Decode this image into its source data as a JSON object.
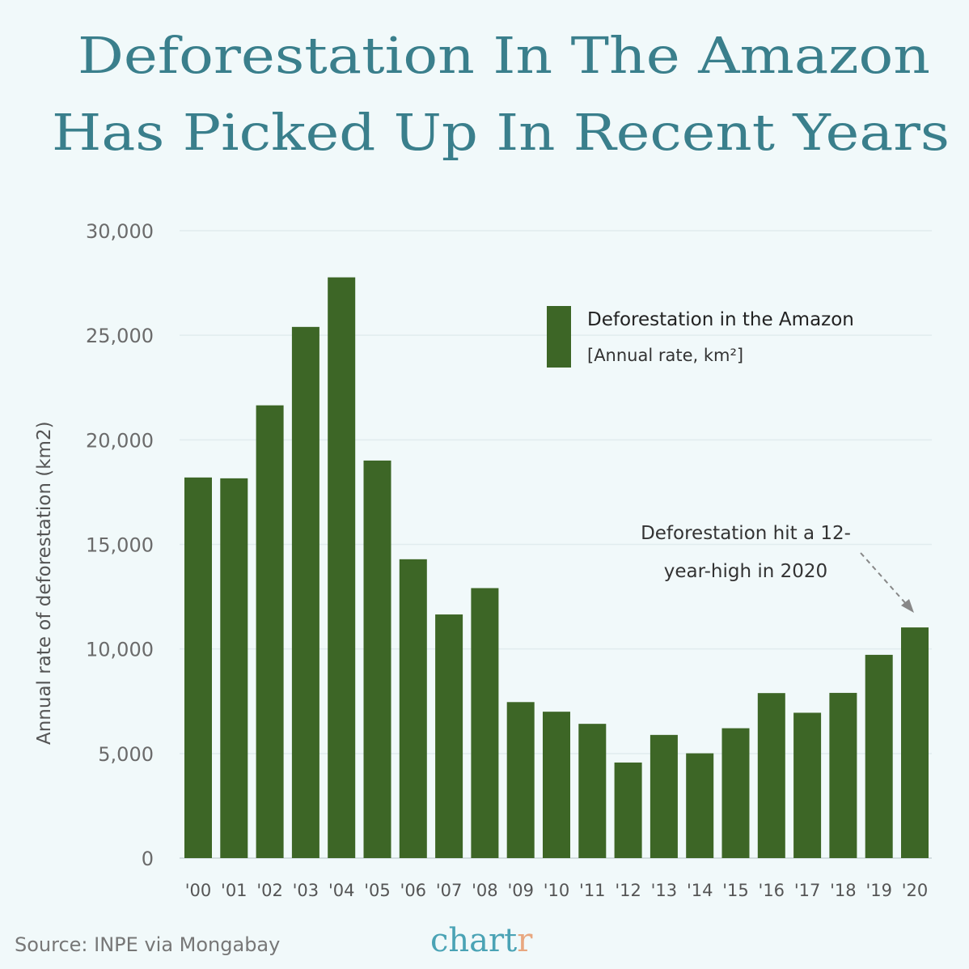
{
  "title_lines": [
    "Deforestation In The Amazon",
    "Has Picked Up In Recent Years"
  ],
  "colors": {
    "background": "#f1f9fa",
    "title": "#3a7f8c",
    "bar": "#3d6626",
    "grid": "#e1ecee",
    "logo_main": "#4aa3b5",
    "logo_accent": "#e8a77f"
  },
  "chart_data": {
    "type": "bar",
    "title": "Deforestation In The Amazon Has Picked Up In Recent Years",
    "ylabel": "Annual rate of deforestation (km2)",
    "xlabel": "",
    "ylim": [
      0,
      30000
    ],
    "yticks": [
      0,
      5000,
      10000,
      15000,
      20000,
      25000,
      30000
    ],
    "ytick_labels": [
      "0",
      "5,000",
      "10,000",
      "15,000",
      "20,000",
      "25,000",
      "30,000"
    ],
    "grid": true,
    "categories": [
      "'00",
      "'01",
      "'02",
      "'03",
      "'04",
      "'05",
      "'06",
      "'07",
      "'08",
      "'09",
      "'10",
      "'11",
      "'12",
      "'13",
      "'14",
      "'15",
      "'16",
      "'17",
      "'18",
      "'19",
      "'20"
    ],
    "values": [
      18200,
      18160,
      21650,
      25400,
      27770,
      19010,
      14290,
      11650,
      12910,
      7460,
      7000,
      6420,
      4570,
      5890,
      5010,
      6210,
      7890,
      6950,
      7900,
      9720,
      11030
    ],
    "legend": {
      "label": "Deforestation in the Amazon",
      "sublabel": "[Annual rate, km²]",
      "placement": "top-right"
    },
    "annotation": {
      "lines": [
        "Deforestation hit a 12-",
        "year-high in 2020"
      ],
      "target": "'20"
    }
  },
  "source": "Source: INPE via Mongabay",
  "logo": {
    "main": "chart",
    "accent": "r"
  }
}
